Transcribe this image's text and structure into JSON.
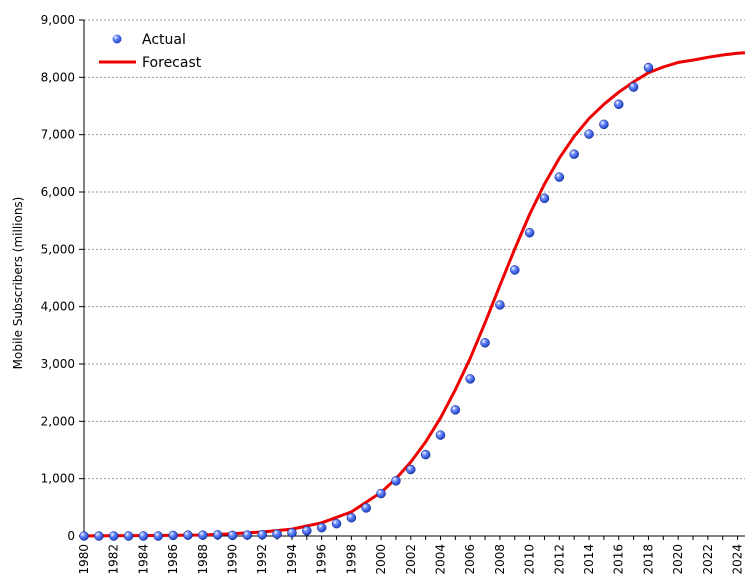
{
  "chart_data": {
    "type": "scatter",
    "title": "",
    "xlabel": "",
    "ylabel": "Mobile Subscribers (millions)",
    "xlim": [
      1980,
      2024.5
    ],
    "ylim": [
      0,
      9000
    ],
    "x_ticks": [
      "1980",
      "1982",
      "1984",
      "1986",
      "1988",
      "1990",
      "1992",
      "1994",
      "1996",
      "1998",
      "2000",
      "2002",
      "2004",
      "2006",
      "2008",
      "2010",
      "2012",
      "2014",
      "2016",
      "2018",
      "2020",
      "2022",
      "2024"
    ],
    "y_ticks": [
      "0",
      "1,000",
      "2,000",
      "3,000",
      "4,000",
      "5,000",
      "6,000",
      "7,000",
      "8,000",
      "9,000"
    ],
    "grid": "horizontal dashed",
    "legend": "top-left",
    "series": [
      {
        "name": "Actual",
        "marker": "sphere",
        "color": "#1a3fc2",
        "points": [
          [
            1980,
            0
          ],
          [
            1981,
            0
          ],
          [
            1982,
            0
          ],
          [
            1983,
            0
          ],
          [
            1984,
            0
          ],
          [
            1985,
            0
          ],
          [
            1986,
            10
          ],
          [
            1987,
            15
          ],
          [
            1988,
            15
          ],
          [
            1989,
            20
          ],
          [
            1990,
            11
          ],
          [
            1991,
            16
          ],
          [
            1992,
            23
          ],
          [
            1993,
            34
          ],
          [
            1994,
            56
          ],
          [
            1995,
            91
          ],
          [
            1996,
            145
          ],
          [
            1997,
            215
          ],
          [
            1998,
            319
          ],
          [
            1999,
            490
          ],
          [
            2000,
            740
          ],
          [
            2001,
            962
          ],
          [
            2002,
            1160
          ],
          [
            2003,
            1420
          ],
          [
            2004,
            1760
          ],
          [
            2005,
            2200
          ],
          [
            2006,
            2740
          ],
          [
            2007,
            3370
          ],
          [
            2008,
            4030
          ],
          [
            2009,
            4640
          ],
          [
            2010,
            5290
          ],
          [
            2011,
            5890
          ],
          [
            2012,
            6260
          ],
          [
            2013,
            6660
          ],
          [
            2014,
            7010
          ],
          [
            2015,
            7180
          ],
          [
            2016,
            7530
          ],
          [
            2017,
            7830
          ],
          [
            2018,
            8170
          ]
        ]
      },
      {
        "name": "Forecast",
        "color": "#ee0000",
        "points": [
          [
            1980,
            2
          ],
          [
            1985,
            8
          ],
          [
            1988,
            18
          ],
          [
            1990,
            40
          ],
          [
            1992,
            70
          ],
          [
            1994,
            120
          ],
          [
            1996,
            230
          ],
          [
            1998,
            420
          ],
          [
            2000,
            760
          ],
          [
            2001,
            1000
          ],
          [
            2002,
            1290
          ],
          [
            2003,
            1640
          ],
          [
            2004,
            2060
          ],
          [
            2005,
            2550
          ],
          [
            2006,
            3100
          ],
          [
            2007,
            3720
          ],
          [
            2008,
            4370
          ],
          [
            2009,
            5010
          ],
          [
            2010,
            5610
          ],
          [
            2011,
            6140
          ],
          [
            2012,
            6590
          ],
          [
            2013,
            6970
          ],
          [
            2014,
            7280
          ],
          [
            2015,
            7530
          ],
          [
            2016,
            7740
          ],
          [
            2017,
            7920
          ],
          [
            2018,
            8080
          ],
          [
            2019,
            8180
          ],
          [
            2020,
            8260
          ],
          [
            2021,
            8300
          ],
          [
            2022,
            8350
          ],
          [
            2023,
            8390
          ],
          [
            2024,
            8420
          ],
          [
            2024.5,
            8430
          ]
        ]
      }
    ]
  }
}
